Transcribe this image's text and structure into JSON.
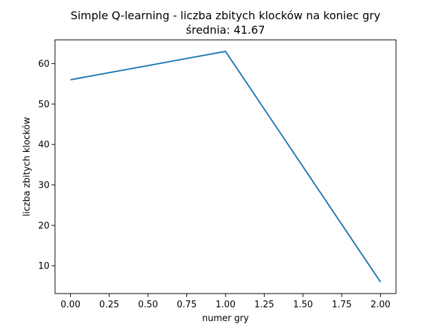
{
  "chart_data": {
    "type": "line",
    "title": "Simple Q-learning - liczba zbitych klocków na koniec gry",
    "subtitle": "średnia: 41.67",
    "xlabel": "numer gry",
    "ylabel": "liczba zbitych klocków",
    "xlim": [
      -0.1,
      2.1
    ],
    "ylim": [
      3.15,
      65.85
    ],
    "x_ticks": [
      0.0,
      0.25,
      0.5,
      0.75,
      1.0,
      1.25,
      1.5,
      1.75,
      2.0
    ],
    "x_tick_labels": [
      "0.00",
      "0.25",
      "0.50",
      "0.75",
      "1.00",
      "1.25",
      "1.50",
      "1.75",
      "2.00"
    ],
    "y_ticks": [
      10,
      20,
      30,
      40,
      50,
      60
    ],
    "y_tick_labels": [
      "10",
      "20",
      "30",
      "40",
      "50",
      "60"
    ],
    "grid": false,
    "legend": "none",
    "series": [
      {
        "x": [
          0,
          1,
          2
        ],
        "values": [
          56,
          63,
          6
        ],
        "color": "#1f77b4"
      }
    ]
  }
}
